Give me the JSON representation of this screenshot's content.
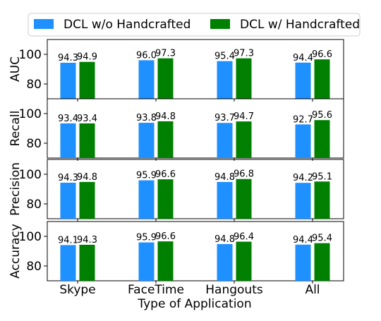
{
  "chart_data": {
    "type": "bar",
    "xlabel": "Type of Application",
    "categories": [
      "Skype",
      "FaceTime",
      "Hangouts",
      "All"
    ],
    "legend": {
      "placement": "top",
      "entries": [
        "DCL w/o Handcrafted",
        "DCL w/ Handcrafted"
      ]
    },
    "colors": {
      "DCL w/o Handcrafted": "#1e90ff",
      "DCL w/ Handcrafted": "#008000"
    },
    "ylim": [
      70,
      110
    ],
    "yticks": [
      "80",
      "100"
    ],
    "grid": false,
    "panels": [
      {
        "ylabel": "AUC",
        "series": [
          {
            "name": "DCL w/o Handcrafted",
            "values": [
              94.3,
              96.0,
              95.4,
              94.4
            ],
            "labels": [
              "94.3",
              "96.0",
              "95.4",
              "94.4"
            ]
          },
          {
            "name": "DCL w/ Handcrafted",
            "values": [
              94.9,
              97.3,
              97.3,
              96.6
            ],
            "labels": [
              "94.9",
              "97.3",
              "97.3",
              "96.6"
            ]
          }
        ]
      },
      {
        "ylabel": "Recall",
        "series": [
          {
            "name": "DCL w/o Handcrafted",
            "values": [
              93.4,
              93.8,
              93.7,
              92.7
            ],
            "labels": [
              "93.4",
              "93.8",
              "93.7",
              "92.7"
            ]
          },
          {
            "name": "DCL w/ Handcrafted",
            "values": [
              93.4,
              94.8,
              94.7,
              95.6
            ],
            "labels": [
              "93.4",
              "94.8",
              "94.7",
              "95.6"
            ]
          }
        ]
      },
      {
        "ylabel": "Precision",
        "series": [
          {
            "name": "DCL w/o Handcrafted",
            "values": [
              94.3,
              95.9,
              94.8,
              94.2
            ],
            "labels": [
              "94.3",
              "95.9",
              "94.8",
              "94.2"
            ]
          },
          {
            "name": "DCL w/ Handcrafted",
            "values": [
              94.8,
              96.6,
              96.8,
              95.1
            ],
            "labels": [
              "94.8",
              "96.6",
              "96.8",
              "95.1"
            ]
          }
        ]
      },
      {
        "ylabel": "Accuracy",
        "series": [
          {
            "name": "DCL w/o Handcrafted",
            "values": [
              94.1,
              95.9,
              94.8,
              94.4
            ],
            "labels": [
              "94.1",
              "95.9",
              "94.8",
              "94.4"
            ]
          },
          {
            "name": "DCL w/ Handcrafted",
            "values": [
              94.3,
              96.6,
              96.4,
              95.4
            ],
            "labels": [
              "94.3",
              "96.6",
              "96.4",
              "95.4"
            ]
          }
        ]
      }
    ]
  }
}
